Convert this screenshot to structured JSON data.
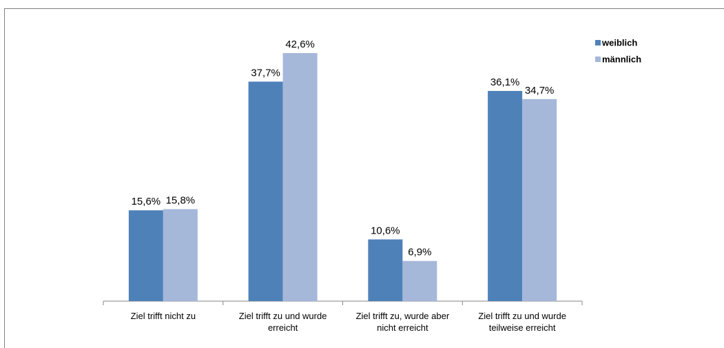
{
  "chart_data": {
    "type": "bar",
    "categories": [
      [
        "Ziel trifft nicht zu"
      ],
      [
        "Ziel trifft zu und wurde",
        "erreicht"
      ],
      [
        "Ziel trifft zu, wurde aber",
        "nicht erreicht"
      ],
      [
        "Ziel trifft zu und wurde",
        "teilweise erreicht"
      ]
    ],
    "series": [
      {
        "name": "weiblich",
        "color": "#4f81b9",
        "values": [
          15.6,
          37.7,
          10.6,
          36.1
        ],
        "labels": [
          "15,6%",
          "37,7%",
          "10,6%",
          "36,1%"
        ]
      },
      {
        "name": "männlich",
        "color": "#a5b8da",
        "values": [
          15.8,
          42.6,
          6.9,
          34.7
        ],
        "labels": [
          "15,8%",
          "42,6%",
          "6,9%",
          "34,7%"
        ]
      }
    ],
    "ylim": [
      0,
      43
    ],
    "grid": false,
    "legend_position": "top-right",
    "title": "",
    "xlabel": "",
    "ylabel": ""
  }
}
